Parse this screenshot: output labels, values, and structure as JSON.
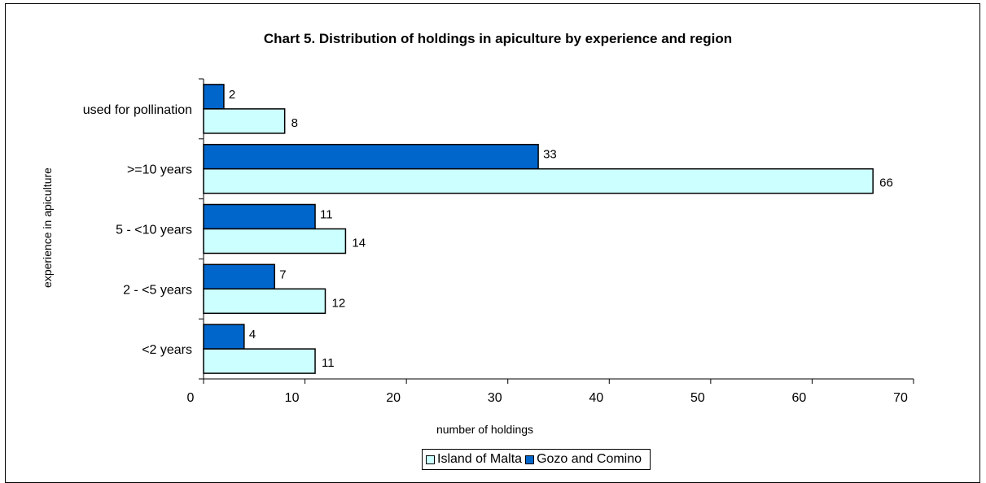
{
  "chart_data": {
    "type": "bar",
    "orientation": "horizontal",
    "title": "Chart 5.  Distribution of holdings in apiculture by experience and region",
    "xlabel": "number of holdings",
    "ylabel": "experience in apiculture",
    "categories": [
      "used for pollination",
      ">=10 years",
      "5 - <10 years",
      "2 - <5 years",
      "<2 years"
    ],
    "series": [
      {
        "name": "Gozo and Comino",
        "color": "#0066cc",
        "values": [
          2,
          33,
          11,
          7,
          4
        ]
      },
      {
        "name": "Island of Malta",
        "color": "#ccffff",
        "values": [
          8,
          66,
          14,
          12,
          11
        ]
      }
    ],
    "xlim": [
      0,
      70
    ],
    "xticks": [
      0,
      10,
      20,
      30,
      40,
      50,
      60,
      70
    ],
    "grid": false,
    "legend": [
      "Island of Malta",
      "Gozo and Comino"
    ],
    "legend_placement": "bottom"
  }
}
